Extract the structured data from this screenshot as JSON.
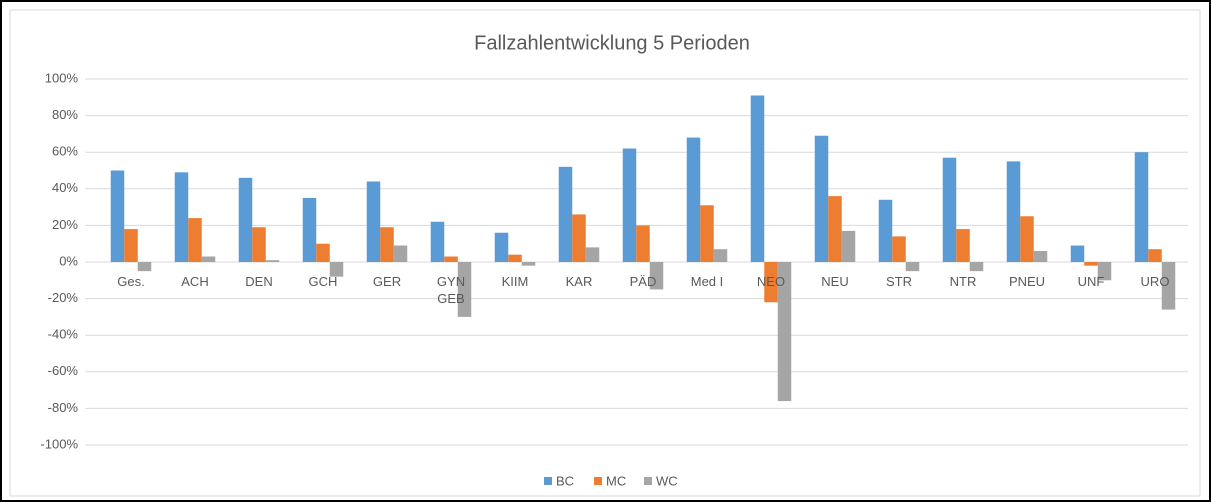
{
  "chart_data": {
    "type": "bar",
    "title": "Fallzahlentwicklung 5 Perioden",
    "categories": [
      "Ges.",
      "ACH",
      "DEN",
      "GCH",
      "GER",
      "GYN\nGEB",
      "KIIM",
      "KAR",
      "PÄD",
      "Med I",
      "NEO",
      "NEU",
      "STR",
      "NTR",
      "PNEU",
      "UNF",
      "URO"
    ],
    "series": [
      {
        "name": "BC",
        "color": "#5b9bd5",
        "values": [
          50,
          49,
          46,
          35,
          44,
          22,
          16,
          52,
          62,
          68,
          91,
          69,
          34,
          57,
          55,
          9,
          60
        ]
      },
      {
        "name": "MC",
        "color": "#ed7d31",
        "values": [
          18,
          24,
          19,
          10,
          19,
          3,
          4,
          26,
          20,
          31,
          -22,
          36,
          14,
          18,
          25,
          -2,
          7
        ]
      },
      {
        "name": "WC",
        "color": "#a5a5a5",
        "values": [
          -5,
          3,
          1,
          -8,
          9,
          -30,
          -2,
          8,
          -15,
          7,
          -76,
          17,
          -5,
          -5,
          6,
          -10,
          -26
        ]
      }
    ],
    "ylim": [
      -100,
      100
    ],
    "yticks": [
      {
        "value": -100,
        "label": "-100%"
      },
      {
        "value": -80,
        "label": "-80%"
      },
      {
        "value": -60,
        "label": "-60%"
      },
      {
        "value": -40,
        "label": "-40%"
      },
      {
        "value": -20,
        "label": "-20%"
      },
      {
        "value": 0,
        "label": "0%"
      },
      {
        "value": 20,
        "label": "20%"
      },
      {
        "value": 40,
        "label": "40%"
      },
      {
        "value": 60,
        "label": "60%"
      },
      {
        "value": 80,
        "label": "80%"
      },
      {
        "value": 100,
        "label": "100%"
      }
    ],
    "grid": true,
    "legend": "bottom"
  }
}
